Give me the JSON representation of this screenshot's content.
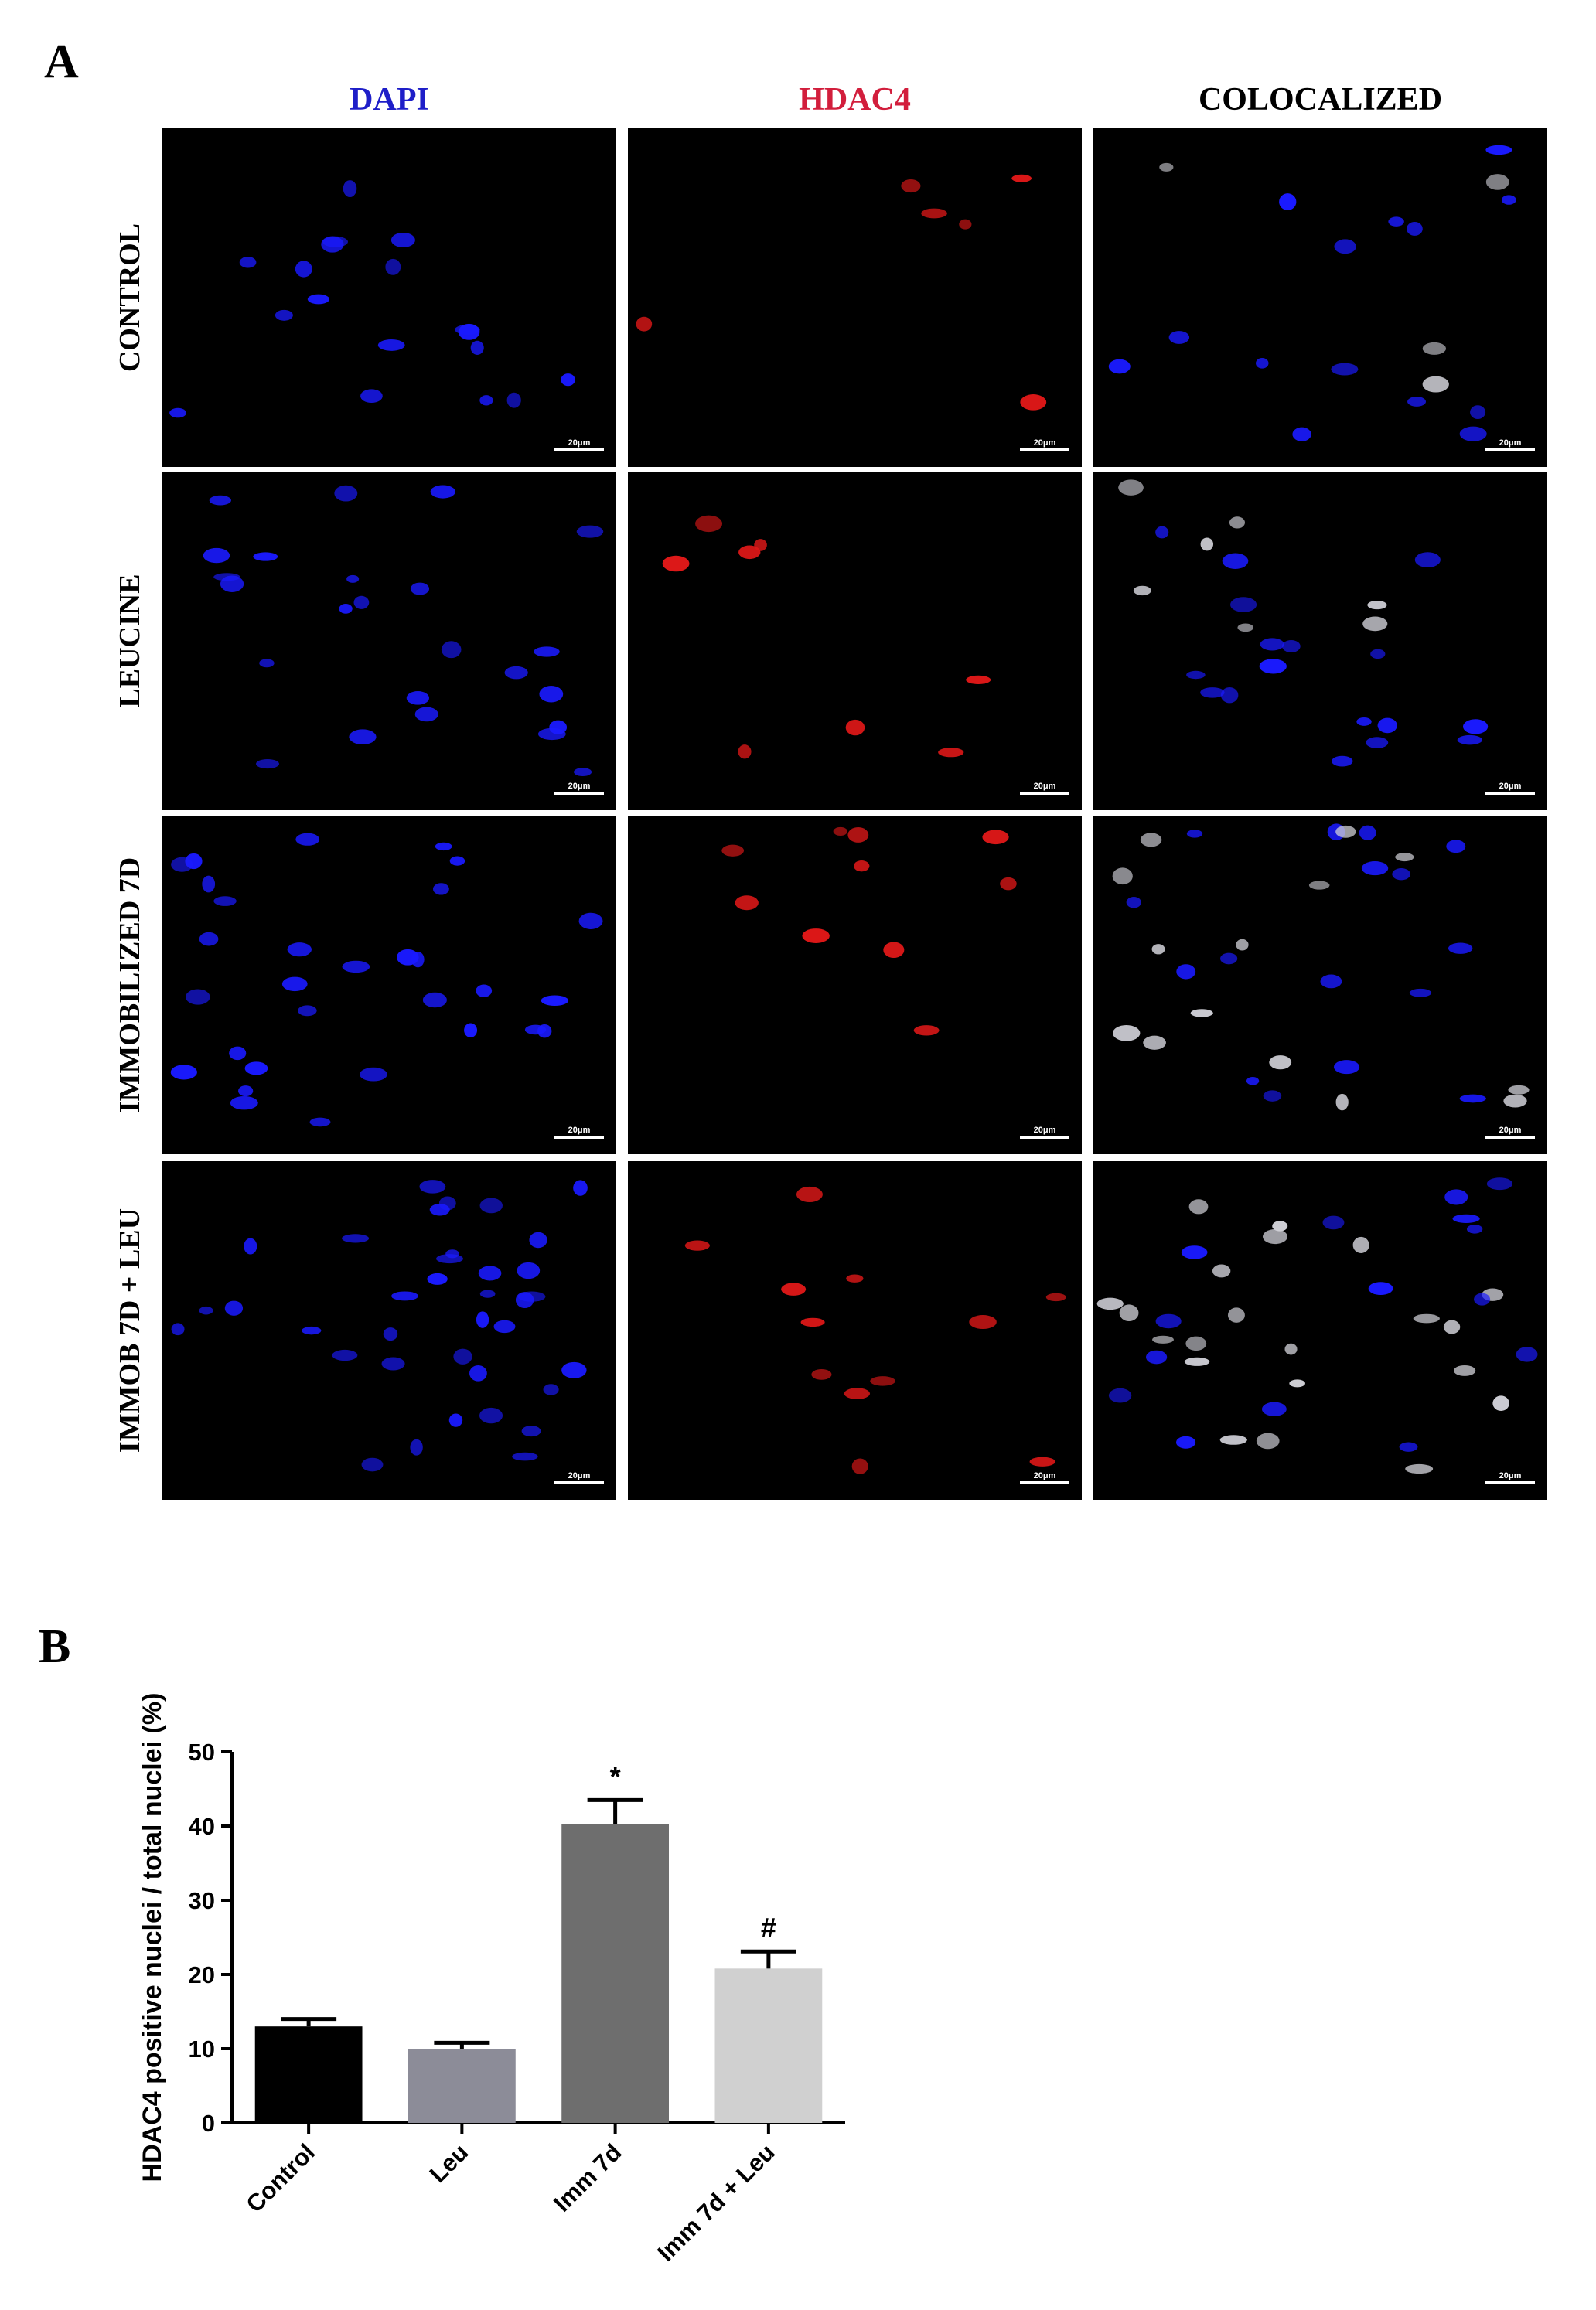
{
  "panel_a": {
    "label": "A",
    "columns": [
      {
        "text": "DAPI",
        "color": "#1e1ec8"
      },
      {
        "text": "HDAC4",
        "color": "#d21e3c"
      },
      {
        "text": "COLOCALIZED",
        "color": "#000000"
      }
    ],
    "rows": [
      "CONTROL",
      "LEUCINE",
      "IMMOBILIZED 7D",
      "IMMOB 7D + LEU"
    ],
    "scale_bar": "20μm"
  },
  "panel_b": {
    "label": "B"
  },
  "chart_data": {
    "type": "bar",
    "ylabel": "HDAC4 positive nuclei / total nuclei (%)",
    "categories": [
      "Control",
      "Leu",
      "Imm 7d",
      "Imm 7d + Leu"
    ],
    "values": [
      13,
      10,
      40.3,
      20.8
    ],
    "errors": [
      1,
      0.8,
      3.2,
      2.3
    ],
    "colors": [
      "#000000",
      "#8c8c98",
      "#6e6e6e",
      "#d0d0d0"
    ],
    "significance": [
      null,
      null,
      "*",
      "#"
    ],
    "ylim": [
      0,
      50
    ],
    "yticks": [
      0,
      10,
      20,
      30,
      40,
      50
    ]
  }
}
